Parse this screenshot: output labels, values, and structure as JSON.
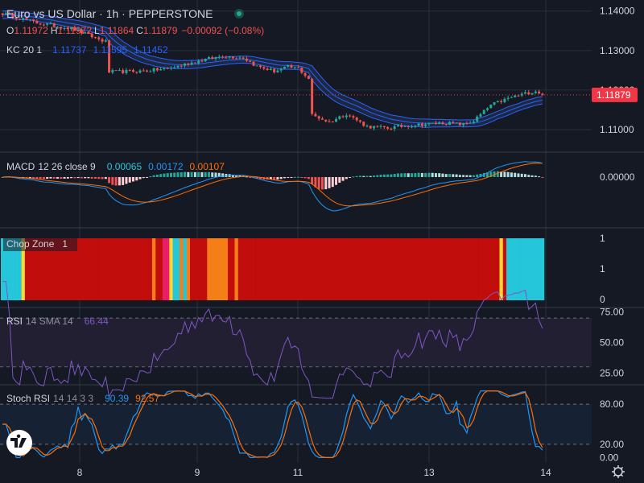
{
  "colors": {
    "bg": "#151924",
    "grid": "#2a2e39",
    "text": "#d1d4dc",
    "muted": "#8a8f9c",
    "up": "#26a69a",
    "down": "#ef5350",
    "kc": "#2962ff",
    "kc_fill": "#1e2a45",
    "macd": "#2196f3",
    "signal": "#ff6d00",
    "rsi": "#7e57c2",
    "rsi_zone": "#221f33",
    "stoch_k": "#2196f3",
    "stoch_d": "#ff6d00",
    "stoch_zone": "#162233",
    "chop_red": "#c20d0d",
    "chop_orange": "#f57f17",
    "chop_pink": "#e91e63",
    "chop_yellow": "#fdd835",
    "chop_cyan": "#26c6da",
    "price_tag": "#f23645"
  },
  "header": {
    "title": "Euro vs US Dollar · 1h · PEPPERSTONE",
    "ohlc": {
      "o_label": "O",
      "o": "1.11972",
      "h_label": "H",
      "h": "1.11972",
      "l_label": "L",
      "l": "1.11864",
      "c_label": "C",
      "c": "1.11879",
      "change": "−0.00092 (−0.08%)"
    },
    "kc": {
      "label": "KC",
      "params": "20 1",
      "v1": "1.11737",
      "v2": "1.11595",
      "v3": "1.11452"
    }
  },
  "price_axis": {
    "ticks": [
      "1.14000",
      "1.13000",
      "1.12000",
      "1.11000"
    ],
    "last_price": "1.11879"
  },
  "macd": {
    "label": "MACD",
    "params": "12 26 close 9",
    "v1": "0.00065",
    "v2": "0.00172",
    "v3": "0.00107",
    "ticks": [
      "0.00000"
    ]
  },
  "chop": {
    "label": "Chop Zone",
    "params": "1",
    "ticks": [
      "1",
      "1",
      "0"
    ]
  },
  "rsi": {
    "label": "RSI",
    "params": "14 SMA 14",
    "value": "66.44",
    "ticks": [
      "75.00",
      "50.00",
      "25.00"
    ]
  },
  "stoch": {
    "label": "Stoch RSI",
    "params": "14 14 3 3",
    "k": "90.39",
    "d": "92.57",
    "ticks": [
      "80.00",
      "20.00",
      "0.00"
    ]
  },
  "time_axis": {
    "labels": [
      "8",
      "9",
      "11",
      "13",
      "14"
    ]
  },
  "icons": {
    "logo": "tradingview-logo",
    "settings": "gear-icon",
    "status": "market-open-icon"
  },
  "chart_data": {
    "type": "candlestick",
    "symbol": "EURUSD 1h",
    "x_labels": [
      "8",
      "9",
      "11",
      "13",
      "14"
    ],
    "price_keypoints": [
      [
        0,
        1.1394
      ],
      [
        10,
        1.137
      ],
      [
        20,
        1.1356
      ],
      [
        30,
        1.1322
      ],
      [
        31,
        1.1246
      ],
      [
        40,
        1.1248
      ],
      [
        48,
        1.1254
      ],
      [
        52,
        1.1263
      ],
      [
        58,
        1.1276
      ],
      [
        64,
        1.1286
      ],
      [
        70,
        1.1282
      ],
      [
        74,
        1.126
      ],
      [
        79,
        1.1248
      ],
      [
        83,
        1.1258
      ],
      [
        86,
        1.1255
      ],
      [
        89,
        1.1229
      ],
      [
        90,
        1.1137
      ],
      [
        95,
        1.1119
      ],
      [
        100,
        1.114
      ],
      [
        106,
        1.1108
      ],
      [
        112,
        1.1104
      ],
      [
        120,
        1.1112
      ],
      [
        128,
        1.1117
      ],
      [
        134,
        1.1113
      ],
      [
        137,
        1.1122
      ],
      [
        142,
        1.1162
      ],
      [
        148,
        1.1182
      ],
      [
        155,
        1.1198
      ],
      [
        157,
        1.1188
      ]
    ],
    "ylim": [
      1.1045,
      1.1428
    ],
    "last_price": 1.11879,
    "macd_ylim": [
      -0.0058,
      0.0028
    ],
    "rsi_ylim": [
      16,
      78
    ],
    "rsi_bands": [
      70,
      30
    ],
    "stoch_ylim": [
      -8,
      108
    ],
    "stoch_bands": [
      80,
      20
    ]
  }
}
